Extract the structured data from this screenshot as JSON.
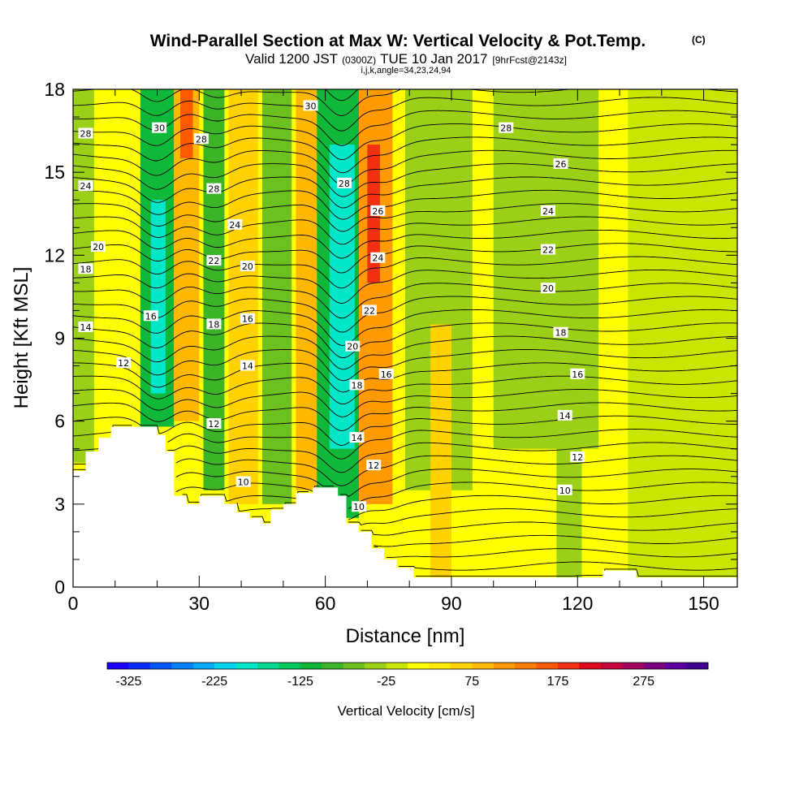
{
  "title": {
    "main": "Wind-Parallel Section at Max W: Vertical Velocity & Pot.Temp.",
    "copyright": "(C)",
    "valid_a": "Valid 1200 JST",
    "valid_b": "(0300Z)",
    "valid_c": "TUE 10 Jan 2017",
    "valid_d": "[9hrFcst@2143z]",
    "params": "i,j,k,angle=34,23,24,94"
  },
  "chart_data": {
    "type": "heatmap",
    "xlabel": "Distance [nm]",
    "ylabel": "Height [Kft MSL]",
    "xlim": [
      0,
      158
    ],
    "ylim": [
      0,
      18
    ],
    "x_ticks": [
      0,
      30,
      60,
      90,
      120,
      150
    ],
    "y_ticks": [
      0,
      3,
      6,
      9,
      12,
      15,
      18
    ],
    "colorbar": {
      "label": "Vertical Velocity [cm/s]",
      "min": -350,
      "max": 350,
      "step": 25,
      "tick_values": [
        -325,
        -225,
        -125,
        -25,
        75,
        175,
        275
      ],
      "tick_labels": [
        "-325",
        "-225",
        "-125",
        "-25",
        "75",
        "175",
        "275"
      ],
      "colors": [
        "#1b00ff",
        "#0b2cff",
        "#0057ff",
        "#0080ff",
        "#00a8ff",
        "#00d2f0",
        "#00e6c8",
        "#00d890",
        "#00c860",
        "#10b83a",
        "#3cb428",
        "#6cc020",
        "#9cd018",
        "#c8e600",
        "#ffff00",
        "#ffec00",
        "#ffd200",
        "#ffb800",
        "#ff9a00",
        "#ff7c00",
        "#ff5a00",
        "#f03010",
        "#e00a1e",
        "#c8003c",
        "#a40060",
        "#7c0080",
        "#5c00a0",
        "#400090"
      ]
    },
    "w_cells": [
      {
        "x0": 0,
        "x1": 158,
        "y0": 0,
        "y1": 18,
        "w": 10
      },
      {
        "x0": 0,
        "x1": 5,
        "y0": 4.5,
        "y1": 18,
        "w": -40
      },
      {
        "x0": 16,
        "x1": 24,
        "y0": 5.8,
        "y1": 18,
        "w": -120
      },
      {
        "x0": 18.5,
        "x1": 22,
        "y0": 7,
        "y1": 14,
        "w": -190
      },
      {
        "x0": 24,
        "x1": 30,
        "y0": 6,
        "y1": 18,
        "w": 90
      },
      {
        "x0": 25.5,
        "x1": 28.5,
        "y0": 15.5,
        "y1": 18,
        "w": 160
      },
      {
        "x0": 31,
        "x1": 36,
        "y0": 3.5,
        "y1": 18,
        "w": -90
      },
      {
        "x0": 37,
        "x1": 44,
        "y0": 3,
        "y1": 18,
        "w": 60
      },
      {
        "x0": 45,
        "x1": 52,
        "y0": 3,
        "y1": 18,
        "w": -60
      },
      {
        "x0": 53,
        "x1": 60,
        "y0": 3.5,
        "y1": 18,
        "w": 80
      },
      {
        "x0": 58,
        "x1": 68,
        "y0": 2.5,
        "y1": 18,
        "w": -110
      },
      {
        "x0": 61,
        "x1": 67,
        "y0": 5,
        "y1": 16,
        "w": -200
      },
      {
        "x0": 68,
        "x1": 76,
        "y0": 3,
        "y1": 18,
        "w": 110
      },
      {
        "x0": 70,
        "x1": 73,
        "y0": 11,
        "y1": 16,
        "w": 180
      },
      {
        "x0": 79,
        "x1": 95,
        "y0": 3.5,
        "y1": 18,
        "w": -40
      },
      {
        "x0": 85,
        "x1": 90,
        "y0": 0.3,
        "y1": 9.5,
        "w": 50
      },
      {
        "x0": 100,
        "x1": 125,
        "y0": 5,
        "y1": 18,
        "w": -30
      },
      {
        "x0": 115,
        "x1": 121,
        "y0": 0.3,
        "y1": 8,
        "w": -40
      },
      {
        "x0": 132,
        "x1": 158,
        "y0": 0.3,
        "y1": 18,
        "w": -20
      }
    ],
    "terrain_kft": [
      [
        0,
        4.2
      ],
      [
        3,
        4.2
      ],
      [
        3,
        4.9
      ],
      [
        6,
        4.9
      ],
      [
        6,
        5.4
      ],
      [
        9,
        5.4
      ],
      [
        9,
        5.8
      ],
      [
        20,
        5.8
      ],
      [
        20,
        5.5
      ],
      [
        22,
        5.5
      ],
      [
        22,
        4.9
      ],
      [
        24,
        4.9
      ],
      [
        24,
        3.3
      ],
      [
        27,
        3.3
      ],
      [
        27,
        3.0
      ],
      [
        30,
        3.0
      ],
      [
        30,
        3.3
      ],
      [
        36,
        3.3
      ],
      [
        36,
        3.0
      ],
      [
        39,
        3.0
      ],
      [
        39,
        2.7
      ],
      [
        42,
        2.7
      ],
      [
        42,
        2.5
      ],
      [
        45,
        2.5
      ],
      [
        45,
        2.3
      ],
      [
        47,
        2.3
      ],
      [
        47,
        2.8
      ],
      [
        50,
        2.8
      ],
      [
        50,
        3.0
      ],
      [
        53,
        3.0
      ],
      [
        53,
        3.4
      ],
      [
        57,
        3.4
      ],
      [
        57,
        3.6
      ],
      [
        63,
        3.6
      ],
      [
        63,
        3.3
      ],
      [
        65,
        3.3
      ],
      [
        65,
        2.3
      ],
      [
        68,
        2.3
      ],
      [
        68,
        2.0
      ],
      [
        71,
        2.0
      ],
      [
        71,
        1.4
      ],
      [
        74,
        1.4
      ],
      [
        74,
        1.0
      ],
      [
        77,
        1.0
      ],
      [
        77,
        0.7
      ],
      [
        81,
        0.7
      ],
      [
        81,
        0.35
      ],
      [
        126,
        0.35
      ],
      [
        126,
        0.6
      ],
      [
        134,
        0.6
      ],
      [
        134,
        0.35
      ],
      [
        158,
        0.35
      ]
    ],
    "theta_levels": [
      10,
      12,
      14,
      16,
      18,
      20,
      22,
      24,
      26,
      28,
      30
    ],
    "theta_label_points": [
      {
        "text": "28",
        "x": 3,
        "y": 16.4
      },
      {
        "text": "24",
        "x": 3,
        "y": 14.5
      },
      {
        "text": "20",
        "x": 6,
        "y": 12.3
      },
      {
        "text": "18",
        "x": 3,
        "y": 11.5
      },
      {
        "text": "14",
        "x": 3,
        "y": 9.4
      },
      {
        "text": "12",
        "x": 12,
        "y": 8.1
      },
      {
        "text": "30",
        "x": 20.5,
        "y": 16.6
      },
      {
        "text": "28",
        "x": 30.5,
        "y": 16.2
      },
      {
        "text": "28",
        "x": 33.5,
        "y": 14.4
      },
      {
        "text": "24",
        "x": 38.5,
        "y": 13.1
      },
      {
        "text": "22",
        "x": 33.5,
        "y": 11.8
      },
      {
        "text": "20",
        "x": 41.5,
        "y": 11.6
      },
      {
        "text": "16",
        "x": 18.5,
        "y": 9.8
      },
      {
        "text": "18",
        "x": 33.5,
        "y": 9.5
      },
      {
        "text": "16",
        "x": 41.5,
        "y": 9.7
      },
      {
        "text": "14",
        "x": 41.5,
        "y": 8.0
      },
      {
        "text": "12",
        "x": 33.5,
        "y": 5.9
      },
      {
        "text": "10",
        "x": 40.5,
        "y": 3.8
      },
      {
        "text": "30",
        "x": 56.5,
        "y": 17.4
      },
      {
        "text": "28",
        "x": 64.5,
        "y": 14.6
      },
      {
        "text": "26",
        "x": 72.5,
        "y": 13.6
      },
      {
        "text": "24",
        "x": 72.5,
        "y": 11.9
      },
      {
        "text": "22",
        "x": 70.5,
        "y": 10.0
      },
      {
        "text": "20",
        "x": 66.5,
        "y": 8.7
      },
      {
        "text": "18",
        "x": 67.5,
        "y": 7.3
      },
      {
        "text": "16",
        "x": 74.5,
        "y": 7.7
      },
      {
        "text": "14",
        "x": 67.5,
        "y": 5.4
      },
      {
        "text": "12",
        "x": 71.5,
        "y": 4.4
      },
      {
        "text": "10",
        "x": 68,
        "y": 2.9
      },
      {
        "text": "28",
        "x": 103,
        "y": 16.6
      },
      {
        "text": "26",
        "x": 116,
        "y": 15.3
      },
      {
        "text": "24",
        "x": 113,
        "y": 13.6
      },
      {
        "text": "22",
        "x": 113,
        "y": 12.2
      },
      {
        "text": "20",
        "x": 113,
        "y": 10.8
      },
      {
        "text": "18",
        "x": 116,
        "y": 9.2
      },
      {
        "text": "16",
        "x": 120,
        "y": 7.7
      },
      {
        "text": "14",
        "x": 117,
        "y": 6.2
      },
      {
        "text": "12",
        "x": 120,
        "y": 4.7
      },
      {
        "text": "10",
        "x": 117,
        "y": 3.5
      }
    ]
  }
}
